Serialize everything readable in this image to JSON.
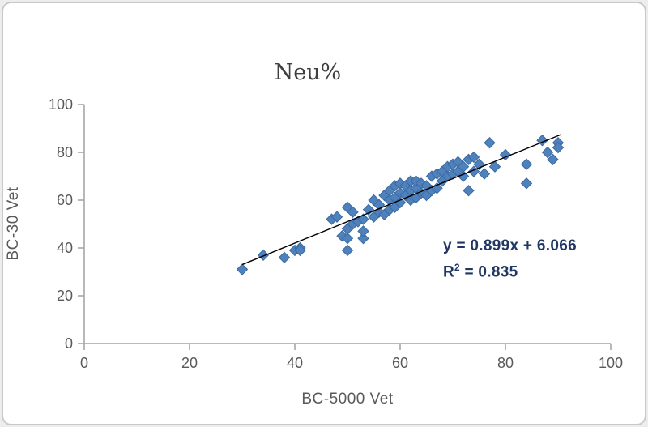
{
  "chart_data": {
    "type": "scatter",
    "title": "Neu%",
    "xlabel": "BC-5000 Vet",
    "ylabel": "BC-30 Vet",
    "xlim": [
      0,
      100
    ],
    "ylim": [
      0,
      100
    ],
    "x_ticks": [
      0,
      20,
      40,
      60,
      80,
      100
    ],
    "y_ticks": [
      0,
      20,
      40,
      60,
      80,
      100
    ],
    "grid": false,
    "legend": "none",
    "marker": {
      "shape": "diamond",
      "color": "#4f81bd",
      "stroke": "#3a699e",
      "size": 6.5
    },
    "axis_color": "#a6a6a6",
    "tick_label_color": "#595959",
    "points": [
      [
        30,
        31
      ],
      [
        34,
        37
      ],
      [
        38,
        36
      ],
      [
        40,
        39
      ],
      [
        41,
        40
      ],
      [
        41,
        39
      ],
      [
        47,
        52
      ],
      [
        48,
        53
      ],
      [
        49,
        45
      ],
      [
        50,
        39
      ],
      [
        50,
        44
      ],
      [
        50,
        48
      ],
      [
        50,
        57
      ],
      [
        51,
        50
      ],
      [
        51,
        55
      ],
      [
        52,
        51
      ],
      [
        53,
        44
      ],
      [
        53,
        47
      ],
      [
        53,
        52
      ],
      [
        54,
        56
      ],
      [
        55,
        53
      ],
      [
        55,
        60
      ],
      [
        56,
        55
      ],
      [
        56,
        58
      ],
      [
        57,
        54
      ],
      [
        57,
        62
      ],
      [
        58,
        56
      ],
      [
        58,
        60
      ],
      [
        58,
        64
      ],
      [
        59,
        57
      ],
      [
        59,
        61
      ],
      [
        59,
        66
      ],
      [
        60,
        59
      ],
      [
        60,
        63
      ],
      [
        60,
        67
      ],
      [
        61,
        62
      ],
      [
        61,
        66
      ],
      [
        62,
        60
      ],
      [
        62,
        64
      ],
      [
        62,
        68
      ],
      [
        63,
        61
      ],
      [
        63,
        65
      ],
      [
        63,
        68
      ],
      [
        64,
        63
      ],
      [
        64,
        67
      ],
      [
        65,
        62
      ],
      [
        65,
        66
      ],
      [
        66,
        64
      ],
      [
        66,
        70
      ],
      [
        67,
        65
      ],
      [
        67,
        71
      ],
      [
        68,
        68
      ],
      [
        68,
        72
      ],
      [
        69,
        70
      ],
      [
        69,
        74
      ],
      [
        70,
        71
      ],
      [
        70,
        75
      ],
      [
        71,
        72
      ],
      [
        71,
        76
      ],
      [
        72,
        70
      ],
      [
        72,
        74
      ],
      [
        73,
        64
      ],
      [
        73,
        77
      ],
      [
        74,
        72
      ],
      [
        74,
        78
      ],
      [
        75,
        75
      ],
      [
        76,
        71
      ],
      [
        77,
        84
      ],
      [
        78,
        74
      ],
      [
        80,
        79
      ],
      [
        84,
        67
      ],
      [
        84,
        75
      ],
      [
        87,
        85
      ],
      [
        88,
        80
      ],
      [
        89,
        77
      ],
      [
        90,
        84
      ],
      [
        90,
        82
      ]
    ],
    "trendline": {
      "slope": 0.899,
      "intercept": 6.066,
      "x_start": 30,
      "x_end": 90.5,
      "color": "#000000"
    },
    "annotation": {
      "line1": "y = 0.899x + 6.066",
      "line2_base": "R",
      "line2_sup": "2",
      "line2_rest": " = 0.835"
    }
  }
}
